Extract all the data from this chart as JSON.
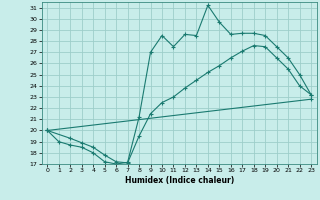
{
  "xlabel": "Humidex (Indice chaleur)",
  "bg_color": "#c8edea",
  "grid_color": "#9ececa",
  "line_color": "#1a7a70",
  "xlim_min": -0.5,
  "xlim_max": 23.5,
  "ylim_min": 17,
  "ylim_max": 31.5,
  "xticks": [
    0,
    1,
    2,
    3,
    4,
    5,
    6,
    7,
    8,
    9,
    10,
    11,
    12,
    13,
    14,
    15,
    16,
    17,
    18,
    19,
    20,
    21,
    22,
    23
  ],
  "yticks": [
    17,
    18,
    19,
    20,
    21,
    22,
    23,
    24,
    25,
    26,
    27,
    28,
    29,
    30,
    31
  ],
  "line1_x": [
    0,
    1,
    2,
    3,
    4,
    5,
    6,
    7,
    8,
    9,
    10,
    11,
    12,
    13,
    14,
    15,
    16,
    17,
    18,
    19,
    20,
    21,
    22,
    23
  ],
  "line1_y": [
    20,
    19,
    18.7,
    18.5,
    18,
    17.2,
    17.0,
    17.15,
    21.2,
    27.0,
    28.5,
    27.5,
    28.6,
    28.5,
    31.2,
    29.7,
    28.6,
    28.7,
    28.7,
    28.5,
    27.5,
    26.5,
    25.0,
    23.2
  ],
  "line2_x": [
    0,
    2,
    3,
    4,
    5,
    6,
    7,
    8,
    9,
    10,
    11,
    12,
    13,
    14,
    15,
    16,
    17,
    18,
    19,
    20,
    21,
    22,
    23
  ],
  "line2_y": [
    20,
    19.3,
    18.9,
    18.5,
    17.8,
    17.2,
    17.1,
    19.5,
    21.5,
    22.5,
    23.0,
    23.8,
    24.5,
    25.2,
    25.8,
    26.5,
    27.1,
    27.6,
    27.5,
    26.5,
    25.5,
    24.0,
    23.2
  ],
  "line3_x": [
    0,
    23
  ],
  "line3_y": [
    20,
    22.8
  ]
}
